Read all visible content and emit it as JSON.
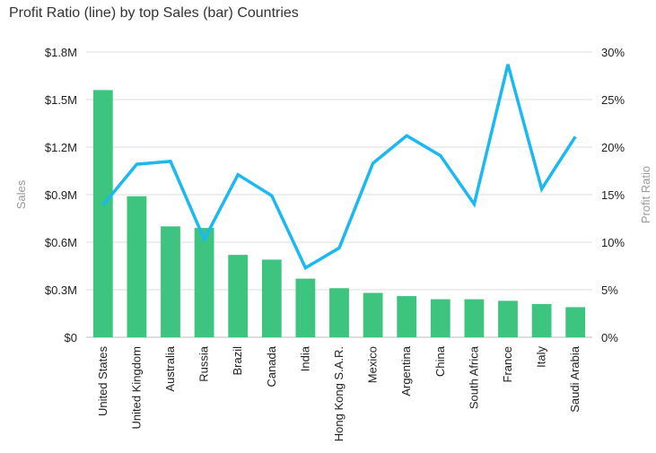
{
  "chart_data": {
    "type": "bar",
    "title": "Profit Ratio (line) by top Sales (bar) Countries",
    "xlabel": "",
    "ylabel": "Sales",
    "y2label": "Profit Ratio",
    "categories": [
      "United States",
      "United Kingdom",
      "Australia",
      "Russia",
      "Brazil",
      "Canada",
      "India",
      "Hong Kong S.A.R.",
      "Mexico",
      "Argentina",
      "China",
      "South Africa",
      "France",
      "Italy",
      "Saudi Arabia"
    ],
    "ylim": [
      0,
      1.8
    ],
    "y2lim": [
      0,
      30
    ],
    "y_ticks": [
      "$0",
      "$0.3M",
      "$0.6M",
      "$0.9M",
      "$1.2M",
      "$1.5M",
      "$1.8M"
    ],
    "y2_ticks": [
      "0%",
      "5%",
      "10%",
      "15%",
      "20%",
      "25%",
      "30%"
    ],
    "grid": "horizontal",
    "series": [
      {
        "name": "Sales",
        "kind": "bar",
        "unit": "$M",
        "color": "#3dc47e",
        "values": [
          1.56,
          0.89,
          0.7,
          0.69,
          0.52,
          0.49,
          0.37,
          0.31,
          0.28,
          0.26,
          0.24,
          0.24,
          0.23,
          0.21,
          0.19
        ]
      },
      {
        "name": "Profit Ratio",
        "kind": "line",
        "unit": "%",
        "color": "#1cb8f0",
        "values": [
          13.9,
          18.2,
          18.5,
          10.3,
          17.1,
          14.9,
          7.3,
          9.4,
          18.3,
          21.2,
          19.1,
          14.0,
          28.7,
          15.6,
          21.1
        ]
      }
    ]
  }
}
